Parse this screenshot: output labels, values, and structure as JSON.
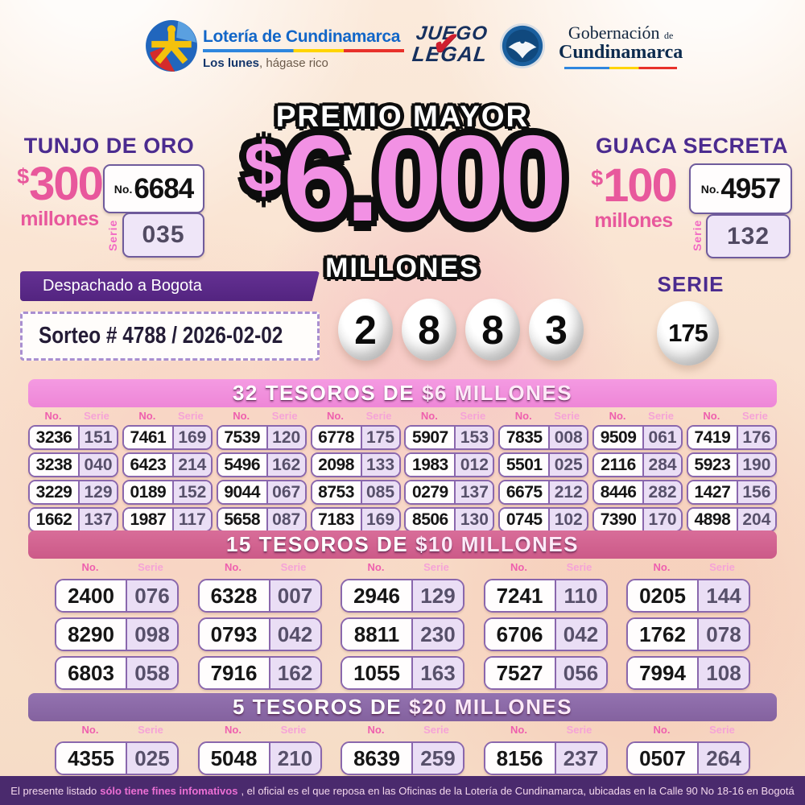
{
  "header": {
    "loteria": {
      "name": "Lotería de Cundinamarca",
      "tagline_bold": "Los lunes",
      "tagline_rest": ", hágase rico"
    },
    "juego_legal": {
      "line1": "JUEGO",
      "line2": "LEGAL",
      "check": "✔"
    },
    "gobernacion": {
      "line1": "Gobernación",
      "line1_suffix": "de",
      "line2": "Cundinamarca"
    }
  },
  "premio": {
    "label": "PREMIO MAYOR",
    "currency": "$",
    "amount": "6.000",
    "unit": "MILLONES"
  },
  "tunjo": {
    "title": "TUNJO DE ORO",
    "currency": "$",
    "amount": "300",
    "unit": "millones",
    "no_label": "No.",
    "no": "6684",
    "serie_label": "Serie",
    "serie": "035"
  },
  "guaca": {
    "title": "GUACA SECRETA",
    "currency": "$",
    "amount": "100",
    "unit": "millones",
    "no_label": "No.",
    "no": "4957",
    "serie_label": "Serie",
    "serie": "132"
  },
  "dispatch": "Despachado a Bogota",
  "sorteo": "Sorteo # 4788 / 2026-02-02",
  "winning_numbers": [
    "2",
    "8",
    "8",
    "3"
  ],
  "serie_heading": "SERIE",
  "serie_ball": "175",
  "sections": [
    {
      "title_plain": "32 TESOROS DE",
      "title_bold": "$6 MILLONES",
      "no_header": "No.",
      "serie_header": "Serie",
      "columns": [
        [
          [
            "3236",
            "151"
          ],
          [
            "3238",
            "040"
          ],
          [
            "3229",
            "129"
          ],
          [
            "1662",
            "137"
          ]
        ],
        [
          [
            "7461",
            "169"
          ],
          [
            "6423",
            "214"
          ],
          [
            "0189",
            "152"
          ],
          [
            "1987",
            "117"
          ]
        ],
        [
          [
            "7539",
            "120"
          ],
          [
            "5496",
            "162"
          ],
          [
            "9044",
            "067"
          ],
          [
            "5658",
            "087"
          ]
        ],
        [
          [
            "6778",
            "175"
          ],
          [
            "2098",
            "133"
          ],
          [
            "8753",
            "085"
          ],
          [
            "7183",
            "169"
          ]
        ],
        [
          [
            "5907",
            "153"
          ],
          [
            "1983",
            "012"
          ],
          [
            "0279",
            "137"
          ],
          [
            "8506",
            "130"
          ]
        ],
        [
          [
            "7835",
            "008"
          ],
          [
            "5501",
            "025"
          ],
          [
            "6675",
            "212"
          ],
          [
            "0745",
            "102"
          ]
        ],
        [
          [
            "9509",
            "061"
          ],
          [
            "2116",
            "284"
          ],
          [
            "8446",
            "282"
          ],
          [
            "7390",
            "170"
          ]
        ],
        [
          [
            "7419",
            "176"
          ],
          [
            "5923",
            "190"
          ],
          [
            "1427",
            "156"
          ],
          [
            "4898",
            "204"
          ]
        ]
      ]
    },
    {
      "title_plain": "15 TESOROS DE",
      "title_bold": "$10 MILLONES",
      "no_header": "No.",
      "serie_header": "Serie",
      "columns": [
        [
          [
            "2400",
            "076"
          ],
          [
            "8290",
            "098"
          ],
          [
            "6803",
            "058"
          ]
        ],
        [
          [
            "6328",
            "007"
          ],
          [
            "0793",
            "042"
          ],
          [
            "7916",
            "162"
          ]
        ],
        [
          [
            "2946",
            "129"
          ],
          [
            "8811",
            "230"
          ],
          [
            "1055",
            "163"
          ]
        ],
        [
          [
            "7241",
            "110"
          ],
          [
            "6706",
            "042"
          ],
          [
            "7527",
            "056"
          ]
        ],
        [
          [
            "0205",
            "144"
          ],
          [
            "1762",
            "078"
          ],
          [
            "7994",
            "108"
          ]
        ]
      ]
    },
    {
      "title_plain": "5 TESOROS DE",
      "title_bold": "$20 MILLONES",
      "no_header": "No.",
      "serie_header": "Serie",
      "columns": [
        [
          [
            "4355",
            "025"
          ]
        ],
        [
          [
            "5048",
            "210"
          ]
        ],
        [
          [
            "8639",
            "259"
          ]
        ],
        [
          [
            "8156",
            "237"
          ]
        ],
        [
          [
            "0507",
            "264"
          ]
        ]
      ]
    }
  ],
  "footer": {
    "prefix": "El presente listado ",
    "bold": "sólo tiene fines infomativos",
    "suffix": ", el oficial es el que reposa en las Oficinas de la Lotería de Cundinamarca, ubicadas en la Calle 90 No 18-16 en Bogotá"
  },
  "colors": {
    "accent_pink": "#ee86d7",
    "accent_rose": "#cc5a88",
    "accent_purple": "#84629f",
    "deep_purple": "#4b2b8f",
    "amount_pink": "#e8589c",
    "footer_bg": "#4a2a6d",
    "prize_pink": "#f291e4"
  }
}
